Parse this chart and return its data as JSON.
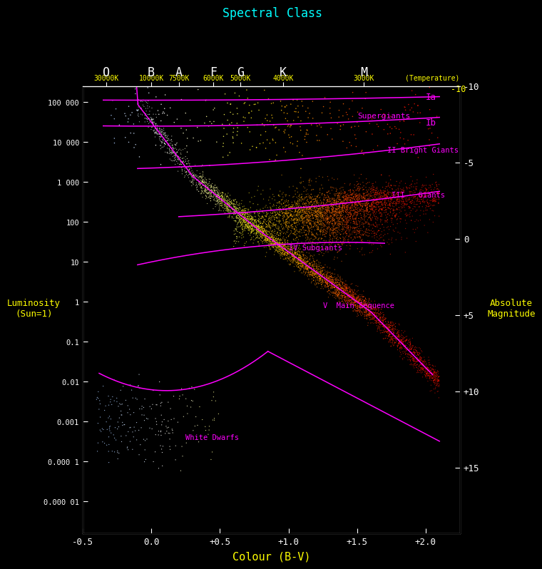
{
  "title": "Spectral Class",
  "xlabel": "Colour (B-V)",
  "ylabel_left": "Luminosity\n(Sun=1)",
  "ylabel_right": "Absolute\nMagnitude",
  "bg_color": "#000000",
  "axis_color": "#ffffff",
  "text_color_yellow": "#ffff00",
  "text_color_cyan": "#00ffff",
  "text_color_magenta": "#ff00ff",
  "text_color_red": "#ff4444",
  "spectral_classes": [
    "O",
    "B",
    "A",
    "F",
    "G",
    "K",
    "M"
  ],
  "spectral_colors": [
    "#00ffff",
    "#ffffff",
    "#ffffff",
    "#ffffff",
    "#00ff00",
    "#ffaa00",
    "#ff2222"
  ],
  "spectral_bv": [
    -0.33,
    0.0,
    0.2,
    0.45,
    0.65,
    0.96,
    1.55
  ],
  "temperatures": [
    "30000K",
    "10000K",
    "7500K",
    "6000K",
    "5000K",
    "4000K",
    "3000K",
    "(Temperature)"
  ],
  "temp_bv": [
    -0.33,
    0.0,
    0.2,
    0.45,
    0.65,
    0.96,
    1.55,
    2.05
  ],
  "xlim": [
    -0.5,
    2.25
  ],
  "ylim_log": [
    -5.8,
    5.4
  ],
  "abs_mag_ticks": [
    -10,
    -5,
    0,
    5,
    10,
    15
  ],
  "lum_ticks": [
    100000,
    10000,
    1000,
    100,
    10,
    1,
    0.1,
    0.01,
    0.001,
    0.0001,
    1e-05
  ],
  "lum_labels": [
    "100 000",
    "10 000",
    "1 000",
    "100",
    "10",
    "1",
    "0.1",
    "0.01",
    "0.001",
    "0.000 1",
    "0.000 01"
  ],
  "curve_color": "#ff00ff",
  "annotation_color": "#ff00ff"
}
